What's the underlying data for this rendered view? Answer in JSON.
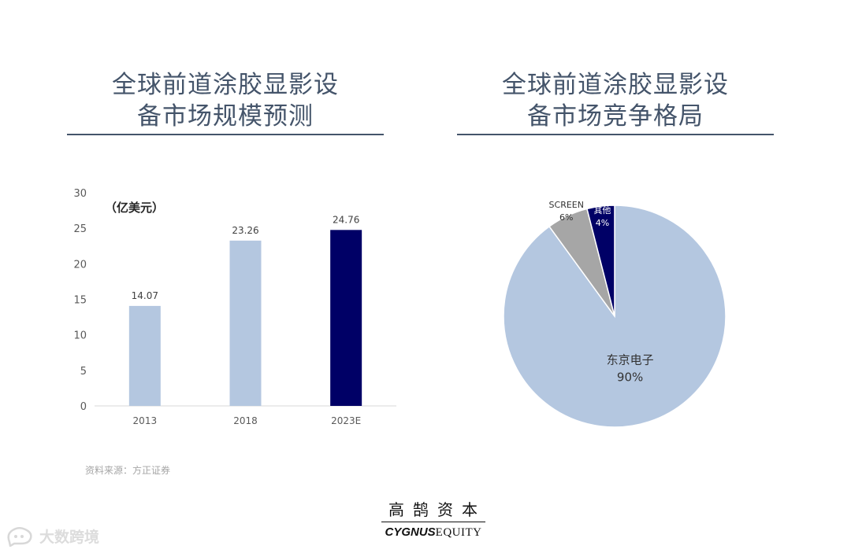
{
  "left_panel": {
    "title": "全球前道涂胶显影设\n备市场规模预测"
  },
  "right_panel": {
    "title": "全球前道涂胶显影设\n备市场竞争格局"
  },
  "source_note": "资料来源：方正证券",
  "logo": {
    "cn": "高鹄资本",
    "en_bold": "CYGNUS",
    "en_serif": "EQUITY"
  },
  "watermark": {
    "text": "大数跨境"
  },
  "chart_data": [
    {
      "type": "bar",
      "unit_label": "（亿美元）",
      "categories": [
        "2013",
        "2018",
        "2023E"
      ],
      "values": [
        14.07,
        23.26,
        24.76
      ],
      "data_labels": [
        "14.07",
        "23.26",
        "24.76"
      ],
      "ylim": [
        0,
        30
      ],
      "yticks": [
        0,
        5,
        10,
        15,
        20,
        25,
        30
      ],
      "colors": [
        "#b4c7e0",
        "#b4c7e0",
        "#000066"
      ],
      "grid": false
    },
    {
      "type": "pie",
      "slices": [
        {
          "name": "东京电子",
          "value": 90,
          "label": "90%",
          "color": "#b4c7e0"
        },
        {
          "name": "SCREEN",
          "value": 6,
          "label": "6%",
          "color": "#a6a6a6"
        },
        {
          "name": "其他",
          "value": 4,
          "label": "4%",
          "color": "#000066"
        }
      ]
    }
  ]
}
